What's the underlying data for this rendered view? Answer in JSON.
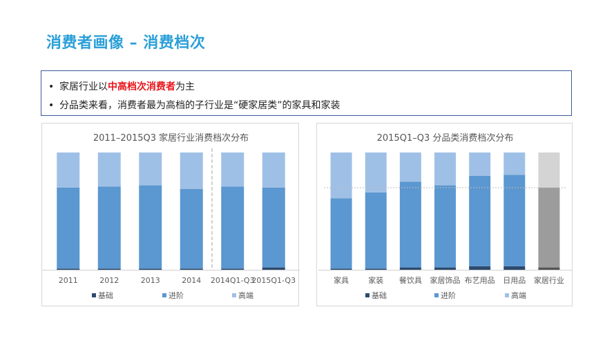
{
  "page": {
    "title": "消费者画像 – 消费档次"
  },
  "bullets": [
    {
      "before": "家居行业以",
      "highlight": "中高档次消费者",
      "after": "为主"
    },
    {
      "before": "分品类来看，消费者最为高档的子行业是“硬家居类”的家具和家装",
      "highlight": "",
      "after": ""
    }
  ],
  "colors": {
    "basic": "#2e4b6e",
    "advanced": "#5b97d0",
    "premium": "#9fc0e6",
    "industry_basic": "#555555",
    "industry_advanced": "#9c9c9c",
    "industry_premium": "#d4d4d4"
  },
  "chart_data": [
    {
      "type": "bar",
      "stacked": true,
      "normalized": true,
      "title": "2011–2015Q3 家居行业消费档次分布",
      "categories": [
        "2011",
        "2012",
        "2013",
        "2014",
        "2014Q1-Q3",
        "2015Q1-Q3"
      ],
      "series": [
        {
          "name": "基础",
          "values": [
            1,
            1,
            1,
            1,
            1,
            2
          ]
        },
        {
          "name": "进阶",
          "values": [
            69,
            70,
            71,
            68,
            70,
            68
          ]
        },
        {
          "name": "高端",
          "values": [
            30,
            29,
            28,
            31,
            29,
            30
          ]
        }
      ],
      "ylim": [
        0,
        100
      ],
      "divider_after_category": "2014",
      "legend_position": "bottom"
    },
    {
      "type": "bar",
      "stacked": true,
      "normalized": true,
      "title": "2015Q1–Q3 分品类消费档次分布",
      "categories": [
        "家具",
        "家装",
        "餐饮具",
        "家居饰品",
        "布艺用品",
        "日用品",
        "家居行业"
      ],
      "series": [
        {
          "name": "基础",
          "values": [
            1,
            1,
            2,
            2,
            3,
            3,
            2
          ]
        },
        {
          "name": "进阶",
          "values": [
            60,
            65,
            73,
            70,
            77,
            78,
            68
          ]
        },
        {
          "name": "高端",
          "values": [
            39,
            34,
            25,
            28,
            20,
            19,
            30
          ]
        }
      ],
      "ylim": [
        0,
        100
      ],
      "reference_line_value": 70,
      "legend_position": "bottom"
    }
  ]
}
